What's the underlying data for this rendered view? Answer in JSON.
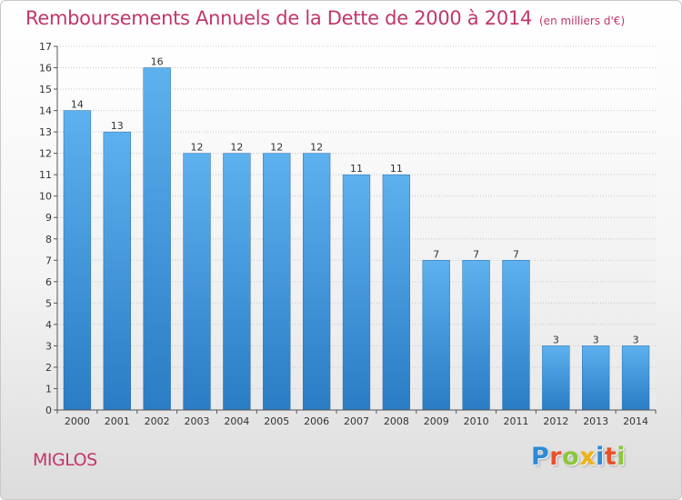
{
  "header": {
    "title": "Remboursements Annuels de la Dette de 2000 à 2014",
    "unit": "(en milliers d'€)"
  },
  "footer": {
    "commune": "MIGLOS",
    "brand_letters": [
      {
        "char": "P",
        "color": "#2e8ad8"
      },
      {
        "char": "r",
        "color": "#e8502a"
      },
      {
        "char": "o",
        "color": "#8cc63e"
      },
      {
        "char": "x",
        "color": "#f2b10f"
      },
      {
        "char": "i",
        "color": "#2e8ad8"
      },
      {
        "char": "t",
        "color": "#e8502a"
      },
      {
        "char": "i",
        "color": "#8cc63e"
      }
    ]
  },
  "colors": {
    "accent": "#c2366b",
    "bar_top": "#5db1ee",
    "bar_bottom": "#2a7cc4",
    "axis": "#555555",
    "grid": "#c8c8c8"
  },
  "chart_data": {
    "type": "bar",
    "categories": [
      "2000",
      "2001",
      "2002",
      "2003",
      "2004",
      "2005",
      "2006",
      "2007",
      "2008",
      "2009",
      "2010",
      "2011",
      "2012",
      "2013",
      "2014"
    ],
    "values": [
      14,
      13,
      16,
      12,
      12,
      12,
      12,
      11,
      11,
      7,
      7,
      7,
      3,
      3,
      3
    ],
    "ylim": [
      0,
      17
    ],
    "yticks": [
      0,
      1,
      2,
      3,
      4,
      5,
      6,
      7,
      8,
      9,
      10,
      11,
      12,
      13,
      14,
      15,
      16,
      17
    ],
    "data_labels": true,
    "grid": true
  }
}
